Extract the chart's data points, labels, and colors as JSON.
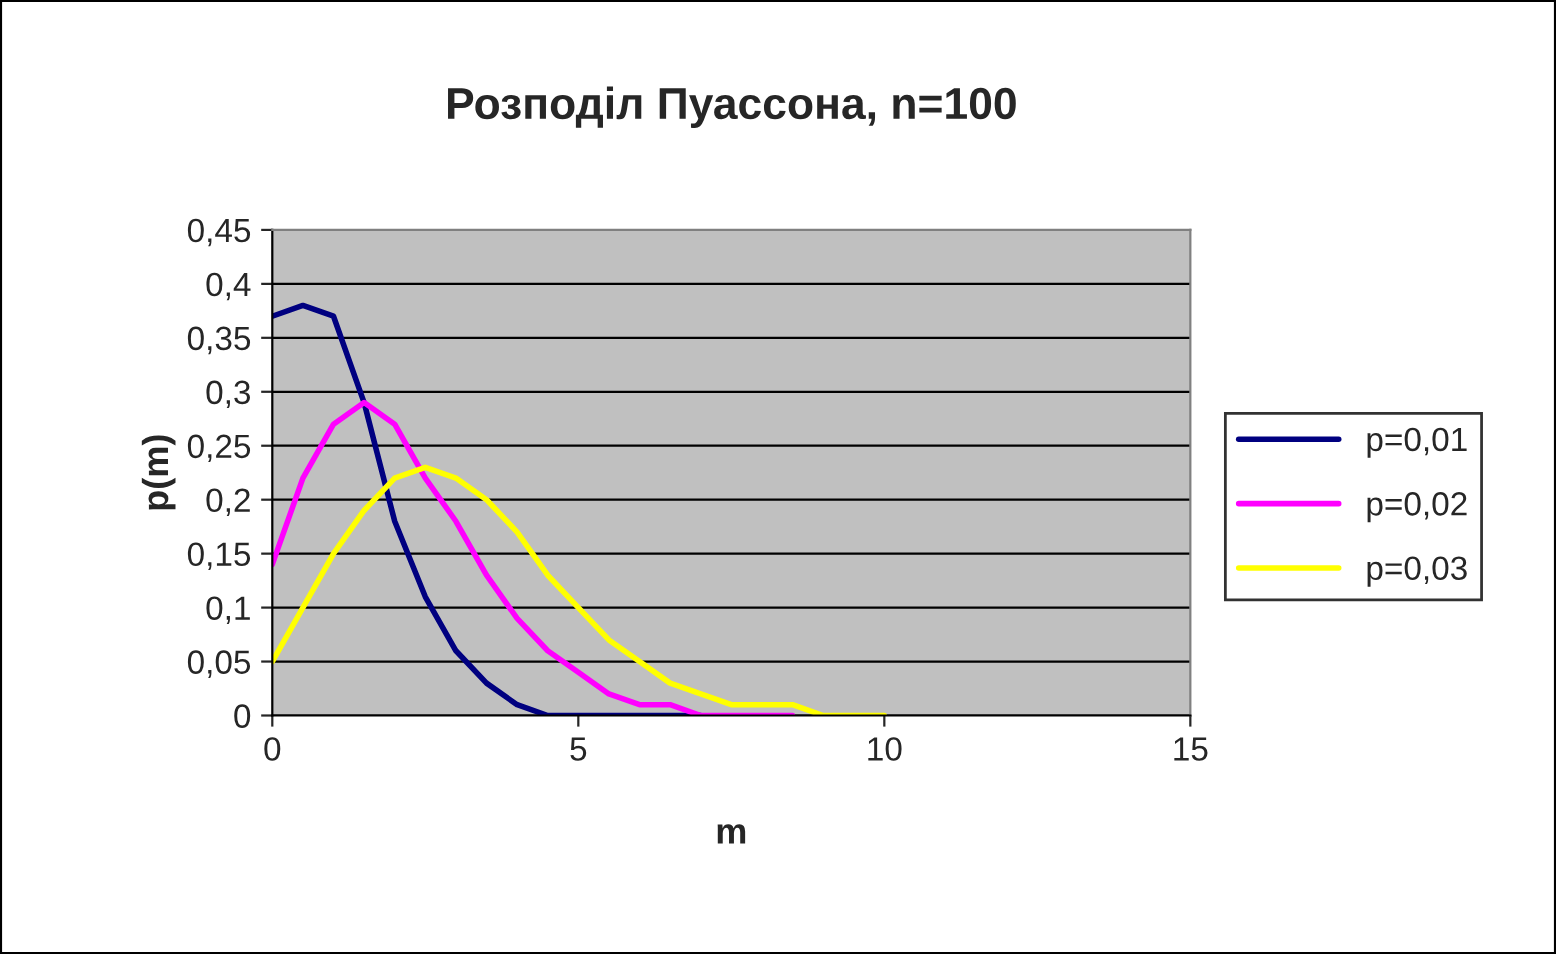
{
  "chart_data": {
    "type": "line",
    "title": "Розподіл Пуассона, n=100",
    "xlabel": "m",
    "ylabel": "p(m)",
    "x": [
      0,
      0.5,
      1,
      1.5,
      2,
      2.5,
      3,
      3.5,
      4,
      4.5,
      5,
      5.5,
      6,
      6.5,
      7,
      7.5,
      8,
      8.5,
      9,
      9.5,
      10
    ],
    "series": [
      {
        "name": "p=0,01",
        "color": "#000080",
        "values": [
          0.37,
          0.38,
          0.37,
          0.29,
          0.18,
          0.11,
          0.06,
          0.03,
          0.01,
          0.0,
          0.0,
          0.0,
          0.0,
          0.0,
          0.0,
          null,
          null,
          null,
          null,
          null,
          null
        ]
      },
      {
        "name": "p=0,02",
        "color": "#ff00ff",
        "values": [
          0.14,
          0.22,
          0.27,
          0.29,
          0.27,
          0.22,
          0.18,
          0.13,
          0.09,
          0.06,
          0.04,
          0.02,
          0.01,
          0.01,
          0.0,
          0.0,
          0.0,
          0.0,
          null,
          null,
          null
        ]
      },
      {
        "name": "p=0,03",
        "color": "#ffff00",
        "values": [
          0.05,
          0.1,
          0.15,
          0.19,
          0.22,
          0.23,
          0.22,
          0.2,
          0.17,
          0.13,
          0.1,
          0.07,
          0.05,
          0.03,
          0.02,
          0.01,
          0.01,
          0.01,
          0.0,
          0.0,
          0.0
        ]
      }
    ],
    "xlim": [
      0,
      15
    ],
    "xticks": [
      0,
      5,
      10,
      15
    ],
    "ylim": [
      0,
      0.45
    ],
    "yticks": [
      0,
      {
        "value": 0.05,
        "label": "0,05"
      },
      {
        "value": 0.1,
        "label": "0,1"
      },
      {
        "value": 0.15,
        "label": "0,15"
      },
      {
        "value": 0.2,
        "label": "0,2"
      },
      {
        "value": 0.25,
        "label": "0,25"
      },
      {
        "value": 0.3,
        "label": "0,3"
      },
      {
        "value": 0.35,
        "label": "0,35"
      },
      {
        "value": 0.4,
        "label": "0,4"
      },
      {
        "value": 0.45,
        "label": "0,45"
      }
    ],
    "grid": "y",
    "legend": "right",
    "marker": "none",
    "line_style": "solid"
  }
}
